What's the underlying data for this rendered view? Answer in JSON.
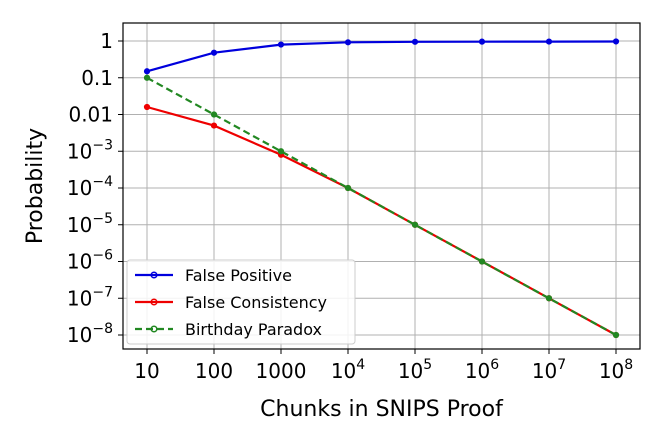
{
  "chart_data": {
    "type": "line",
    "x": [
      10,
      100,
      1000,
      10000,
      100000,
      1000000,
      10000000,
      100000000
    ],
    "series": [
      {
        "name": "False Positive",
        "color": "#0000dd",
        "line_style": "solid",
        "marker": "circle",
        "values": [
          0.15,
          0.48,
          0.8,
          0.92,
          0.95,
          0.96,
          0.965,
          0.97
        ]
      },
      {
        "name": "False Consistency",
        "color": "#ee0000",
        "line_style": "solid",
        "marker": "circle",
        "values": [
          0.016,
          0.005,
          0.0008,
          0.0001,
          1e-05,
          1e-06,
          1e-07,
          1e-08
        ]
      },
      {
        "name": "Birthday Paradox",
        "color": "#228822",
        "line_style": "dashed",
        "marker": "circle",
        "values": [
          0.1,
          0.01,
          0.001,
          0.0001,
          1e-05,
          1e-06,
          1e-07,
          1e-08
        ]
      }
    ],
    "x_ticks": [
      {
        "base": "10",
        "exp": ""
      },
      {
        "base": "100",
        "exp": ""
      },
      {
        "base": "1000",
        "exp": ""
      },
      {
        "base": "10",
        "exp": "4"
      },
      {
        "base": "10",
        "exp": "5"
      },
      {
        "base": "10",
        "exp": "6"
      },
      {
        "base": "10",
        "exp": "7"
      },
      {
        "base": "10",
        "exp": "8"
      }
    ],
    "y_ticks": [
      {
        "value": 1,
        "base": "1",
        "exp": ""
      },
      {
        "value": 0.1,
        "base": "0.1",
        "exp": ""
      },
      {
        "value": 0.01,
        "base": "0.01",
        "exp": ""
      },
      {
        "value": 0.001,
        "base": "10",
        "exp": "−3"
      },
      {
        "value": 0.0001,
        "base": "10",
        "exp": "−4"
      },
      {
        "value": 1e-05,
        "base": "10",
        "exp": "−5"
      },
      {
        "value": 1e-06,
        "base": "10",
        "exp": "−6"
      },
      {
        "value": 1e-07,
        "base": "10",
        "exp": "−7"
      },
      {
        "value": 1e-08,
        "base": "10",
        "exp": "−8"
      }
    ],
    "xlabel": "Chunks in SNIPS Proof",
    "ylabel": "Probability",
    "x_scale": "log",
    "y_scale": "log",
    "xlim": [
      10,
      100000000
    ],
    "ylim": [
      1e-08,
      1
    ],
    "grid": true,
    "legend_position": "bottom-left"
  }
}
